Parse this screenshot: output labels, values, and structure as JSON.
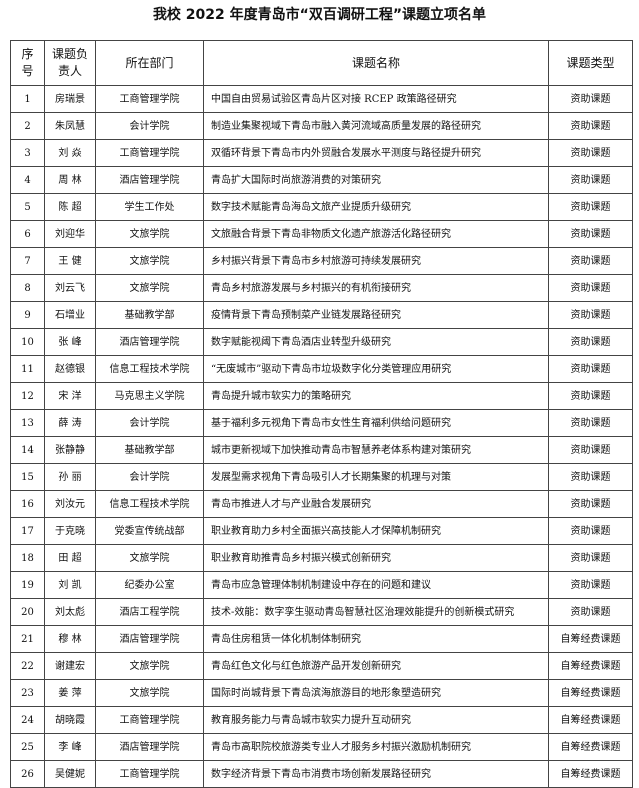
{
  "title": "我校 2022 年度青岛市“双百调研工程”课题立项名单",
  "headers": [
    "序号",
    "课题负责人",
    "所在部门",
    "课题名称",
    "课题类型"
  ],
  "rows": [
    [
      "1",
      "房瑞景",
      "工商管理学院",
      "中国自由贸易试验区青岛片区对接 RCEP 政策路径研究",
      "资助课题"
    ],
    [
      "2",
      "朱凤慧",
      "会计学院",
      "制造业集聚视域下青岛市融入黄河流域高质量发展的路径研究",
      "资助课题"
    ],
    [
      "3",
      "刘 焱",
      "工商管理学院",
      "双循环背景下青岛市内外贸融合发展水平测度与路径提升研究",
      "资助课题"
    ],
    [
      "4",
      "周 林",
      "酒店管理学院",
      "青岛扩大国际时尚旅游消费的对策研究",
      "资助课题"
    ],
    [
      "5",
      "陈 超",
      "学生工作处",
      "数字技术赋能青岛海岛文旅产业提质升级研究",
      "资助课题"
    ],
    [
      "6",
      "刘迎华",
      "文旅学院",
      "文旅融合背景下青岛非物质文化遗产旅游活化路径研究",
      "资助课题"
    ],
    [
      "7",
      "王 健",
      "文旅学院",
      "乡村振兴背景下青岛市乡村旅游可持续发展研究",
      "资助课题"
    ],
    [
      "8",
      "刘云飞",
      "文旅学院",
      "青岛乡村旅游发展与乡村振兴的有机衔接研究",
      "资助课题"
    ],
    [
      "9",
      "石增业",
      "基础教学部",
      "疫情背景下青岛预制菜产业链发展路径研究",
      "资助课题"
    ],
    [
      "10",
      "张 峰",
      "酒店管理学院",
      "数字赋能视阈下青岛酒店业转型升级研究",
      "资助课题"
    ],
    [
      "11",
      "赵德银",
      "信息工程技术学院",
      "“无废城市”驱动下青岛市垃圾数字化分类管理应用研究",
      "资助课题"
    ],
    [
      "12",
      "宋 洋",
      "马克思主义学院",
      "青岛提升城市软实力的策略研究",
      "资助课题"
    ],
    [
      "13",
      "薛 涛",
      "会计学院",
      "基于福利多元视角下青岛市女性生育福利供给问题研究",
      "资助课题"
    ],
    [
      "14",
      "张静静",
      "基础教学部",
      "城市更新视域下加快推动青岛市智慧养老体系构建对策研究",
      "资助课题"
    ],
    [
      "15",
      "孙 丽",
      "会计学院",
      "发展型需求视角下青岛吸引人才长期集聚的机理与对策",
      "资助课题"
    ],
    [
      "16",
      "刘汝元",
      "信息工程技术学院",
      "青岛市推进人才与产业融合发展研究",
      "资助课题"
    ],
    [
      "17",
      "于克晓",
      "党委宣传统战部",
      "职业教育助力乡村全面振兴高技能人才保障机制研究",
      "资助课题"
    ],
    [
      "18",
      "田 超",
      "文旅学院",
      "职业教育助推青岛乡村振兴模式创新研究",
      "资助课题"
    ],
    [
      "19",
      "刘 凯",
      "纪委办公室",
      "青岛市应急管理体制机制建设中存在的问题和建议",
      "资助课题"
    ],
    [
      "20",
      "刘太彪",
      "酒店工程学院",
      "技术-效能：数字孪生驱动青岛智慧社区治理效能提升的创新模式研究",
      "资助课题"
    ],
    [
      "21",
      "穆 林",
      "酒店管理学院",
      "青岛住房租赁一体化机制体制研究",
      "自筹经费课题"
    ],
    [
      "22",
      "谢建宏",
      "文旅学院",
      "青岛红色文化与红色旅游产品开发创新研究",
      "自筹经费课题"
    ],
    [
      "23",
      "姜 萍",
      "文旅学院",
      "国际时尚城背景下青岛滨海旅游目的地形象塑造研究",
      "自筹经费课题"
    ],
    [
      "24",
      "胡晓霞",
      "工商管理学院",
      "教育服务能力与青岛城市软实力提升互动研究",
      "自筹经费课题"
    ],
    [
      "25",
      "李 峰",
      "酒店管理学院",
      "青岛市高职院校旅游类专业人才服务乡村振兴激励机制研究",
      "自筹经费课题"
    ],
    [
      "26",
      "吴健妮",
      "工商管理学院",
      "数字经济背景下青岛市消费市场创新发展路径研究",
      "自筹经费课题"
    ]
  ]
}
